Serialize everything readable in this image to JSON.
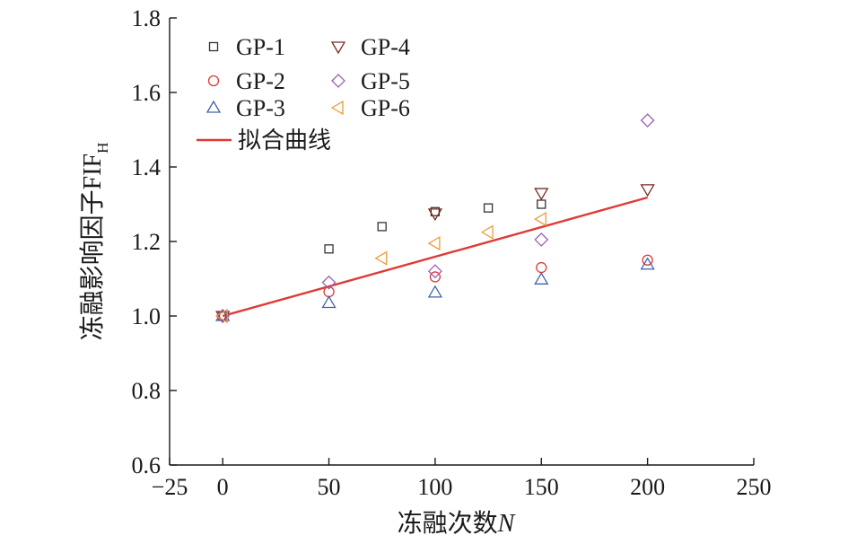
{
  "chart_data": {
    "type": "scatter",
    "title": "",
    "xlabel": "冻融次数",
    "xlabel_italic": "N",
    "ylabel": "冻融影响因子FIF",
    "ylabel_sub": "H",
    "xlim": [
      -25,
      250
    ],
    "ylim": [
      0.6,
      1.8
    ],
    "xticks": [
      -25,
      0,
      50,
      100,
      150,
      200,
      250
    ],
    "yticks": [
      0.6,
      0.8,
      1.0,
      1.2,
      1.4,
      1.6,
      1.8
    ],
    "xtick_labels": [
      "−25",
      "0",
      "50",
      "100",
      "150",
      "200",
      "250"
    ],
    "ytick_labels": [
      "0.6",
      "0.8",
      "1.0",
      "1.2",
      "1.4",
      "1.6",
      "1.8"
    ],
    "grid": false,
    "legend_position": "top-left",
    "series": [
      {
        "name": "GP-1",
        "marker": "square",
        "color": "#333333",
        "x": [
          0,
          50,
          75,
          100,
          125,
          150
        ],
        "y": [
          1.0,
          1.18,
          1.24,
          1.28,
          1.29,
          1.3
        ]
      },
      {
        "name": "GP-2",
        "marker": "circle",
        "color": "#e03a36",
        "x": [
          0,
          50,
          100,
          150,
          200
        ],
        "y": [
          1.0,
          1.065,
          1.105,
          1.13,
          1.15
        ]
      },
      {
        "name": "GP-3",
        "marker": "triangle-up",
        "color": "#3f63a8",
        "x": [
          0,
          50,
          100,
          150,
          200
        ],
        "y": [
          1.0,
          1.035,
          1.063,
          1.098,
          1.138
        ]
      },
      {
        "name": "GP-4",
        "marker": "triangle-down",
        "color": "#7a2a22",
        "x": [
          0,
          100,
          150,
          200
        ],
        "y": [
          1.0,
          1.275,
          1.33,
          1.34
        ]
      },
      {
        "name": "GP-5",
        "marker": "diamond",
        "color": "#9a5fb4",
        "x": [
          0,
          50,
          100,
          150,
          200
        ],
        "y": [
          1.0,
          1.09,
          1.12,
          1.205,
          1.525
        ]
      },
      {
        "name": "GP-6",
        "marker": "triangle-left",
        "color": "#ee9a3a",
        "x": [
          0,
          75,
          100,
          125,
          150
        ],
        "y": [
          1.0,
          1.155,
          1.195,
          1.225,
          1.26
        ]
      }
    ],
    "fit_line": {
      "name": "拟合曲线",
      "color": "#e03a36",
      "x": [
        0,
        200
      ],
      "y": [
        1.0,
        1.318
      ]
    }
  }
}
